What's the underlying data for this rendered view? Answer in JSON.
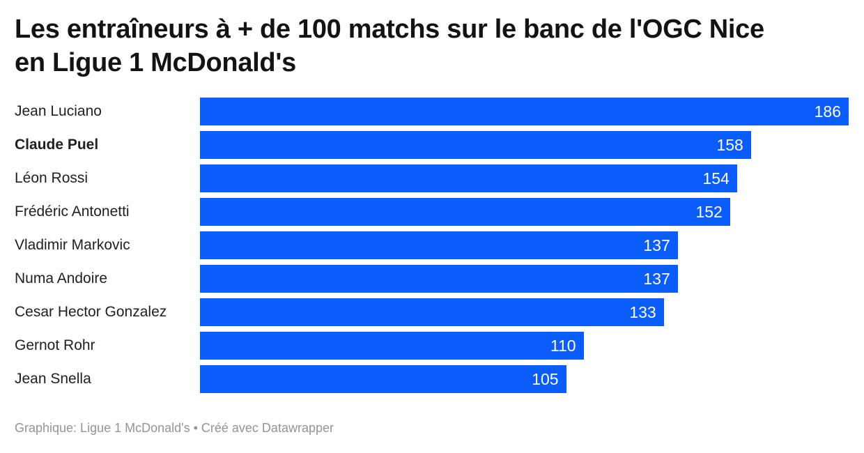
{
  "title": {
    "line1": "Les entraîneurs à + de 100 matchs sur le banc de l'OGC Nice",
    "line2": "en Ligue 1 McDonald's"
  },
  "footer": {
    "text": "Graphique: Ligue 1 McDonald's • Créé avec Datawrapper"
  },
  "colors": {
    "bar": "#0a5dfb",
    "title_text": "#131313",
    "label_text": "#1f1f1f",
    "value_text": "#ffffff",
    "footer_text": "#949494",
    "background": "#ffffff"
  },
  "chart_data": {
    "type": "bar",
    "orientation": "horizontal",
    "title": "Les entraîneurs à + de 100 matchs sur le banc de l'OGC Nice en Ligue 1 McDonald's",
    "categories": [
      "Jean Luciano",
      "Claude Puel",
      "Léon Rossi",
      "Frédéric Antonetti",
      "Vladimir Markovic",
      "Numa Andoire",
      "Cesar Hector Gonzalez",
      "Gernot Rohr",
      "Jean Snella"
    ],
    "values": [
      186,
      158,
      154,
      152,
      137,
      137,
      133,
      110,
      105
    ],
    "bold_flags": [
      false,
      true,
      false,
      false,
      false,
      false,
      false,
      false,
      false
    ],
    "highlighted_category": "Claude Puel",
    "xlim": [
      0,
      186
    ],
    "xlabel": "",
    "ylabel": "",
    "grid": false,
    "legend": false,
    "value_labels": "inside-end",
    "source": "Ligue 1 McDonald's",
    "tool": "Datawrapper"
  }
}
